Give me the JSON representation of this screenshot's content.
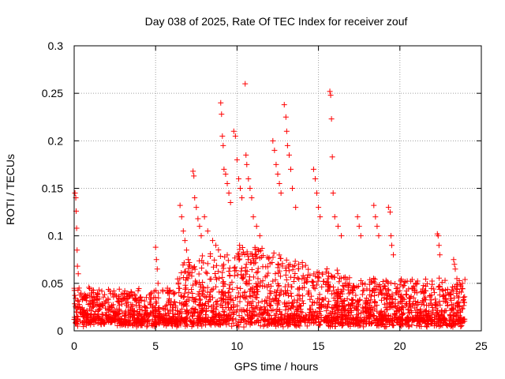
{
  "chart_data": {
    "type": "scatter",
    "title": "Day 038 of 2025, Rate Of TEC Index for receiver zouf",
    "xlabel": "GPS time / hours",
    "ylabel": "ROTI / TECUs",
    "xlim": [
      0,
      25
    ],
    "ylim": [
      0,
      0.3
    ],
    "x_ticks": [
      "0",
      "5",
      "10",
      "15",
      "20",
      "25"
    ],
    "y_ticks": [
      "0",
      "0.05",
      "0.1",
      "0.15",
      "0.2",
      "0.25",
      "0.3"
    ],
    "grid": true,
    "marker": "+",
    "color": "#ff0000",
    "series": [
      {
        "values": [
          [
            0.05,
            0.145
          ],
          [
            0.1,
            0.14
          ],
          [
            0.12,
            0.126
          ],
          [
            0.15,
            0.108
          ],
          [
            0.18,
            0.085
          ],
          [
            0.2,
            0.068
          ],
          [
            0.25,
            0.06
          ],
          [
            0.3,
            0.045
          ],
          [
            5.0,
            0.088
          ],
          [
            5.05,
            0.075
          ],
          [
            5.1,
            0.065
          ],
          [
            5.15,
            0.05
          ],
          [
            6.5,
            0.132
          ],
          [
            6.6,
            0.12
          ],
          [
            6.7,
            0.105
          ],
          [
            6.8,
            0.095
          ],
          [
            6.9,
            0.085
          ],
          [
            7.0,
            0.075
          ],
          [
            7.1,
            0.068
          ],
          [
            7.3,
            0.168
          ],
          [
            7.35,
            0.163
          ],
          [
            7.4,
            0.14
          ],
          [
            7.5,
            0.13
          ],
          [
            7.6,
            0.118
          ],
          [
            7.7,
            0.11
          ],
          [
            7.8,
            0.1
          ],
          [
            8.0,
            0.12
          ],
          [
            8.2,
            0.105
          ],
          [
            8.5,
            0.095
          ],
          [
            8.7,
            0.09
          ],
          [
            9.0,
            0.24
          ],
          [
            9.05,
            0.228
          ],
          [
            9.1,
            0.205
          ],
          [
            9.15,
            0.195
          ],
          [
            9.2,
            0.17
          ],
          [
            9.3,
            0.165
          ],
          [
            9.4,
            0.155
          ],
          [
            9.5,
            0.145
          ],
          [
            9.6,
            0.135
          ],
          [
            9.8,
            0.21
          ],
          [
            9.9,
            0.205
          ],
          [
            10.0,
            0.18
          ],
          [
            10.1,
            0.16
          ],
          [
            10.2,
            0.15
          ],
          [
            10.3,
            0.14
          ],
          [
            10.5,
            0.26
          ],
          [
            10.55,
            0.185
          ],
          [
            10.6,
            0.175
          ],
          [
            10.7,
            0.16
          ],
          [
            10.8,
            0.15
          ],
          [
            10.9,
            0.14
          ],
          [
            11.0,
            0.12
          ],
          [
            11.2,
            0.11
          ],
          [
            11.4,
            0.1
          ],
          [
            12.2,
            0.2
          ],
          [
            12.3,
            0.19
          ],
          [
            12.4,
            0.175
          ],
          [
            12.5,
            0.165
          ],
          [
            12.6,
            0.155
          ],
          [
            12.7,
            0.145
          ],
          [
            12.9,
            0.238
          ],
          [
            13.0,
            0.225
          ],
          [
            13.05,
            0.21
          ],
          [
            13.1,
            0.195
          ],
          [
            13.2,
            0.185
          ],
          [
            13.3,
            0.17
          ],
          [
            13.4,
            0.15
          ],
          [
            13.6,
            0.13
          ],
          [
            14.7,
            0.17
          ],
          [
            14.8,
            0.16
          ],
          [
            14.9,
            0.145
          ],
          [
            15.0,
            0.13
          ],
          [
            15.1,
            0.12
          ],
          [
            15.7,
            0.252
          ],
          [
            15.75,
            0.248
          ],
          [
            15.8,
            0.223
          ],
          [
            15.85,
            0.183
          ],
          [
            15.9,
            0.145
          ],
          [
            16.0,
            0.12
          ],
          [
            16.2,
            0.11
          ],
          [
            16.4,
            0.1
          ],
          [
            17.4,
            0.12
          ],
          [
            17.5,
            0.11
          ],
          [
            17.6,
            0.1
          ],
          [
            18.4,
            0.132
          ],
          [
            18.5,
            0.12
          ],
          [
            18.6,
            0.11
          ],
          [
            18.7,
            0.1
          ],
          [
            19.3,
            0.13
          ],
          [
            19.4,
            0.125
          ],
          [
            19.45,
            0.1
          ],
          [
            19.5,
            0.09
          ],
          [
            19.6,
            0.08
          ],
          [
            22.3,
            0.102
          ],
          [
            22.35,
            0.1
          ],
          [
            22.4,
            0.09
          ],
          [
            22.45,
            0.08
          ],
          [
            23.3,
            0.075
          ],
          [
            23.35,
            0.07
          ],
          [
            23.4,
            0.065
          ],
          [
            23.5,
            0.055
          ]
        ]
      }
    ]
  }
}
